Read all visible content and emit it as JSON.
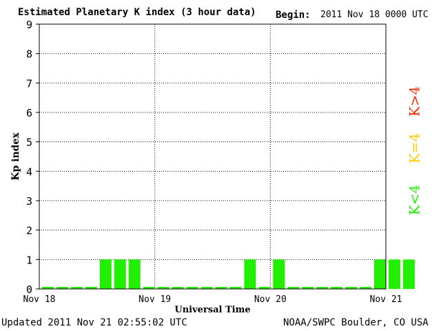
{
  "header": {
    "title": "Estimated Planetary K index (3 hour data)",
    "begin_label": "Begin:",
    "begin_value": "2011 Nov 18 0000 UTC"
  },
  "footer": {
    "updated": "Updated 2011 Nov 21 02:55:02 UTC",
    "credit": "NOAA/SWPC Boulder, CO USA"
  },
  "legend": [
    {
      "label": "K>4",
      "color": "#ff2a00"
    },
    {
      "label": "K=4",
      "color": "#ffcc00"
    },
    {
      "label": "K<4",
      "color": "#22ee00"
    }
  ],
  "chart_data": {
    "type": "bar",
    "title": "Estimated Planetary K index (3 hour data)",
    "xlabel": "Universal Time",
    "ylabel": "Kp index",
    "ylim": [
      0,
      9
    ],
    "yticks": [
      "0",
      "1",
      "2",
      "3",
      "4",
      "5",
      "6",
      "7",
      "8",
      "9"
    ],
    "x_tick_labels": [
      "Nov 18",
      "Nov 19",
      "Nov 20",
      "Nov 21"
    ],
    "grid": true,
    "bar_color": "#22ee00",
    "values": [
      0,
      0,
      0,
      0,
      1,
      1,
      1,
      0,
      0,
      0,
      0,
      0,
      0,
      0,
      1,
      0,
      1,
      0,
      0,
      0,
      0,
      0,
      0,
      1,
      1,
      1
    ]
  }
}
